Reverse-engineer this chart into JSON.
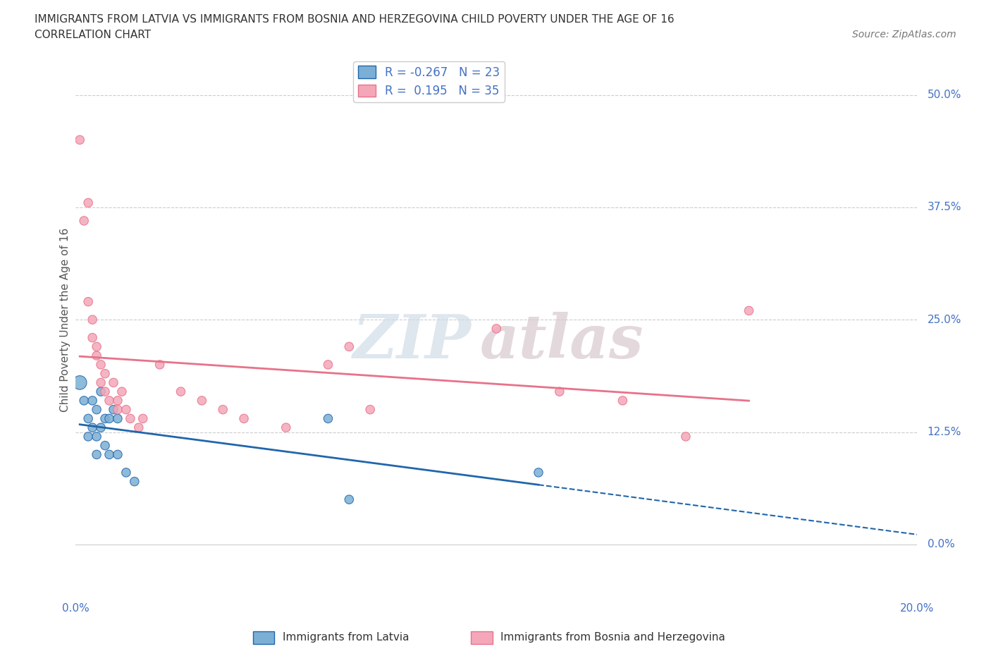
{
  "title_line1": "IMMIGRANTS FROM LATVIA VS IMMIGRANTS FROM BOSNIA AND HERZEGOVINA CHILD POVERTY UNDER THE AGE OF 16",
  "title_line2": "CORRELATION CHART",
  "source_text": "Source: ZipAtlas.com",
  "ylabel": "Child Poverty Under the Age of 16",
  "watermark_zip": "ZIP",
  "watermark_atlas": "atlas",
  "legend_r_values": [
    "-0.267",
    "0.195"
  ],
  "legend_n_values": [
    "23",
    "35"
  ],
  "xlim": [
    0.0,
    0.2
  ],
  "ylim": [
    -0.05,
    0.55
  ],
  "yticks": [
    0.0,
    0.125,
    0.25,
    0.375,
    0.5
  ],
  "ytick_labels": [
    "0.0%",
    "12.5%",
    "25.0%",
    "37.5%",
    "50.0%"
  ],
  "xtick_vals": [
    0.0,
    0.05,
    0.1,
    0.15,
    0.2
  ],
  "xtick_labels": [
    "0.0%",
    "",
    "",
    "",
    "20.0%"
  ],
  "color_latvia": "#7bafd4",
  "color_bosnia": "#f4a7b9",
  "line_color_latvia": "#2166ac",
  "line_color_bosnia": "#e8728a",
  "background_color": "#ffffff",
  "grid_color": "#cccccc",
  "latvia_x": [
    0.001,
    0.002,
    0.003,
    0.003,
    0.004,
    0.004,
    0.005,
    0.005,
    0.005,
    0.006,
    0.006,
    0.007,
    0.007,
    0.008,
    0.008,
    0.009,
    0.01,
    0.01,
    0.012,
    0.014,
    0.06,
    0.065,
    0.11
  ],
  "latvia_y": [
    0.18,
    0.16,
    0.14,
    0.12,
    0.16,
    0.13,
    0.15,
    0.12,
    0.1,
    0.17,
    0.13,
    0.14,
    0.11,
    0.14,
    0.1,
    0.15,
    0.1,
    0.14,
    0.08,
    0.07,
    0.14,
    0.05,
    0.08
  ],
  "latvia_sizes": [
    200,
    80,
    80,
    80,
    80,
    80,
    80,
    80,
    80,
    80,
    80,
    80,
    80,
    80,
    80,
    80,
    80,
    80,
    80,
    80,
    80,
    80,
    80
  ],
  "bosnia_x": [
    0.001,
    0.002,
    0.003,
    0.003,
    0.004,
    0.004,
    0.005,
    0.005,
    0.006,
    0.006,
    0.007,
    0.007,
    0.008,
    0.009,
    0.01,
    0.01,
    0.011,
    0.012,
    0.013,
    0.015,
    0.016,
    0.02,
    0.025,
    0.03,
    0.035,
    0.04,
    0.05,
    0.06,
    0.065,
    0.07,
    0.1,
    0.115,
    0.13,
    0.145,
    0.16
  ],
  "bosnia_y": [
    0.45,
    0.36,
    0.38,
    0.27,
    0.25,
    0.23,
    0.21,
    0.22,
    0.2,
    0.18,
    0.17,
    0.19,
    0.16,
    0.18,
    0.16,
    0.15,
    0.17,
    0.15,
    0.14,
    0.13,
    0.14,
    0.2,
    0.17,
    0.16,
    0.15,
    0.14,
    0.13,
    0.2,
    0.22,
    0.15,
    0.24,
    0.17,
    0.16,
    0.12,
    0.26
  ],
  "bosnia_sizes": [
    80,
    80,
    80,
    80,
    80,
    80,
    80,
    80,
    80,
    80,
    80,
    80,
    80,
    80,
    80,
    80,
    80,
    80,
    80,
    80,
    80,
    80,
    80,
    80,
    80,
    80,
    80,
    80,
    80,
    80,
    80,
    80,
    80,
    80,
    80
  ]
}
